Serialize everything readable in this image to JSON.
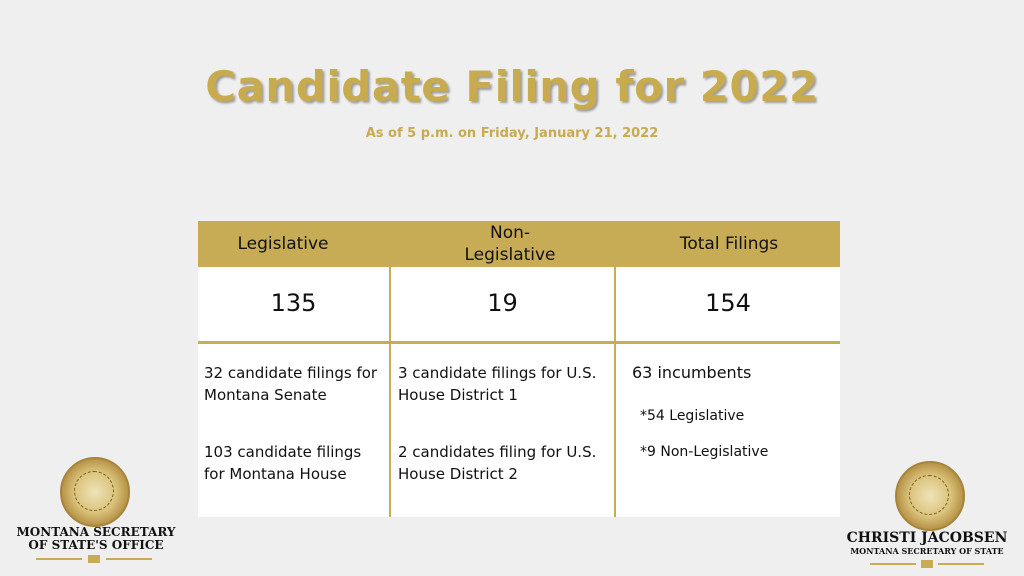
{
  "title": "Candidate Filing for 2022",
  "subtitle": "As of 5 p.m. on Friday, January 21, 2022",
  "table": {
    "headers": [
      "Legislative",
      "Non-\nLegislative",
      "Total Filings"
    ],
    "totals": [
      "135",
      "19",
      "154"
    ],
    "legislative_details": [
      "32 candidate filings for Montana Senate",
      "103 candidate filings for Montana House"
    ],
    "non_legislative_details": [
      "3 candidate filings for U.S. House District 1",
      "2 candidates filing for U.S. House District 2"
    ],
    "total_details": {
      "incumbents": "63 incumbents",
      "breakdown": [
        "*54 Legislative",
        "*9 Non-Legislative"
      ]
    }
  },
  "logos": {
    "left": {
      "line1": "MONTANA SECRETARY",
      "line2": "OF STATE'S OFFICE"
    },
    "right": {
      "line1": "CHRISTI JACOBSEN",
      "line2": "MONTANA SECRETARY OF STATE"
    }
  },
  "colors": {
    "gold": "#c8ab55",
    "background": "#efefef"
  }
}
